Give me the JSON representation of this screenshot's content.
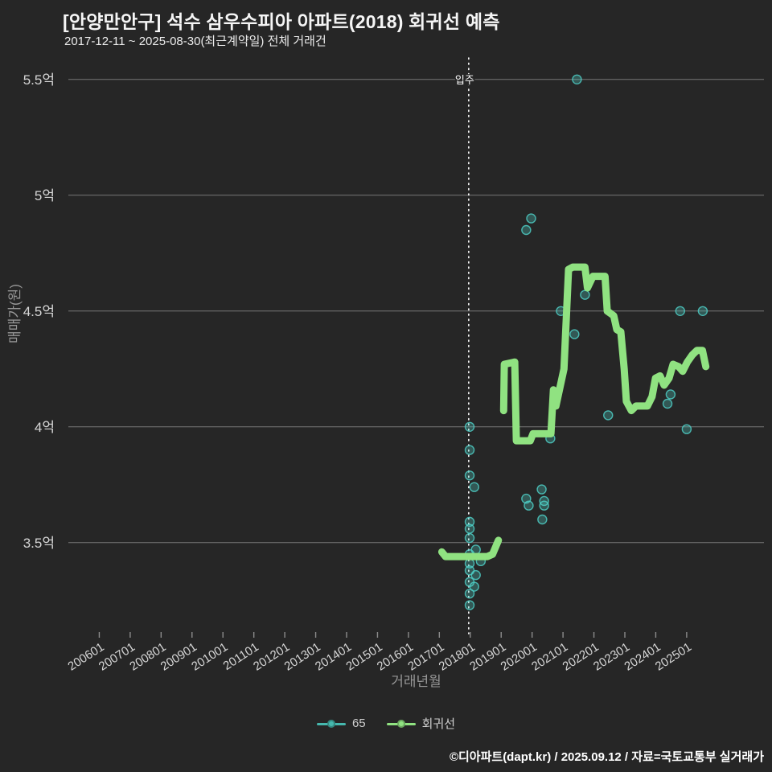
{
  "header": {
    "title": "[안양만안구] 석수 삼우수피아 아파트(2018) 회귀선 예측",
    "subtitle": "2017-12-11 ~ 2025-08-30(최근계약일) 전체 거래건"
  },
  "footer": {
    "credit": "©디아파트(dapt.kr) / 2025.09.12 / 자료=국토교통부 실거래가"
  },
  "legend": [
    {
      "label": "65",
      "color": "#46b8ae",
      "marker": "scatter-dot"
    },
    {
      "label": "회귀선",
      "color": "#90e281",
      "marker": "line-dot"
    }
  ],
  "colors": {
    "background": "#262626",
    "grid": "#8c8c8c",
    "tick_label": "#d6d6d6",
    "axis_title": "#969696",
    "annotation": "#ffffff",
    "scatter": "#4ecdc4",
    "regression": "#90e281"
  },
  "chart_data": {
    "type": "scatter",
    "title": "[안양만안구] 석수 삼우수피아 아파트(2018) 회귀선 예측",
    "subtitle": "2017-12-11 ~ 2025-08-30(최근계약일) 전체 거래건",
    "xlabel": "거래년월",
    "ylabel": "매매가(원)",
    "y_unit": "억",
    "xlim": [
      2005.0,
      2027.5
    ],
    "ylim": [
      3.1,
      5.6
    ],
    "grid": true,
    "legend_position": "bottom-center",
    "x_ticks": [
      {
        "value": 2006,
        "label": "200601"
      },
      {
        "value": 2007,
        "label": "200701"
      },
      {
        "value": 2008,
        "label": "200801"
      },
      {
        "value": 2009,
        "label": "200901"
      },
      {
        "value": 2010,
        "label": "201001"
      },
      {
        "value": 2011,
        "label": "201101"
      },
      {
        "value": 2012,
        "label": "201201"
      },
      {
        "value": 2013,
        "label": "201301"
      },
      {
        "value": 2014,
        "label": "201401"
      },
      {
        "value": 2015,
        "label": "201501"
      },
      {
        "value": 2016,
        "label": "201601"
      },
      {
        "value": 2017,
        "label": "201701"
      },
      {
        "value": 2018,
        "label": "201801"
      },
      {
        "value": 2019,
        "label": "201901"
      },
      {
        "value": 2020,
        "label": "202001"
      },
      {
        "value": 2021,
        "label": "202101"
      },
      {
        "value": 2022,
        "label": "202201"
      },
      {
        "value": 2023,
        "label": "202301"
      },
      {
        "value": 2024,
        "label": "202401"
      },
      {
        "value": 2025,
        "label": "202501"
      }
    ],
    "y_ticks": [
      {
        "value": 5.5,
        "label": "5.5억"
      },
      {
        "value": 5.0,
        "label": "5억"
      },
      {
        "value": 4.5,
        "label": "4.5억"
      },
      {
        "value": 4.0,
        "label": "4억"
      },
      {
        "value": 3.5,
        "label": "3.5억"
      }
    ],
    "annotation": {
      "label": "입주",
      "x": 2017.95,
      "style": "dotted-vertical-line",
      "color": "#ffffff"
    },
    "series": [
      {
        "name": "65",
        "type": "scatter",
        "color": "#4ecdc4",
        "points": [
          [
            2021.45,
            5.5
          ],
          [
            2019.97,
            4.9
          ],
          [
            2019.81,
            4.85
          ],
          [
            2024.79,
            4.5
          ],
          [
            2025.52,
            4.5
          ],
          [
            2020.93,
            4.5
          ],
          [
            2021.71,
            4.57
          ],
          [
            2021.37,
            4.4
          ],
          [
            2022.46,
            4.05
          ],
          [
            2024.48,
            4.14
          ],
          [
            2024.38,
            4.1
          ],
          [
            2025.0,
            3.99
          ],
          [
            2020.59,
            3.95
          ],
          [
            2017.98,
            4.0
          ],
          [
            2017.98,
            3.9
          ],
          [
            2017.98,
            3.79
          ],
          [
            2018.13,
            3.74
          ],
          [
            2020.31,
            3.73
          ],
          [
            2019.81,
            3.69
          ],
          [
            2020.39,
            3.68
          ],
          [
            2019.89,
            3.66
          ],
          [
            2020.39,
            3.66
          ],
          [
            2020.33,
            3.6
          ],
          [
            2017.98,
            3.59
          ],
          [
            2017.98,
            3.56
          ],
          [
            2017.98,
            3.52
          ],
          [
            2018.18,
            3.47
          ],
          [
            2017.98,
            3.45
          ],
          [
            2018.34,
            3.42
          ],
          [
            2017.98,
            3.41
          ],
          [
            2017.98,
            3.38
          ],
          [
            2018.18,
            3.36
          ],
          [
            2017.98,
            3.33
          ],
          [
            2018.13,
            3.31
          ],
          [
            2017.98,
            3.28
          ],
          [
            2017.98,
            3.23
          ]
        ]
      },
      {
        "name": "회귀선",
        "type": "line",
        "color": "#90e281",
        "width": 9,
        "segments": [
          [
            [
              2017.08,
              3.46
            ],
            [
              2017.2,
              3.44
            ],
            [
              2018.55,
              3.44
            ],
            [
              2018.72,
              3.45
            ],
            [
              2018.91,
              3.51
            ]
          ],
          [
            [
              2019.08,
              4.07
            ],
            [
              2019.1,
              4.27
            ],
            [
              2019.44,
              4.28
            ],
            [
              2019.49,
              3.94
            ],
            [
              2019.94,
              3.94
            ],
            [
              2020.03,
              3.97
            ],
            [
              2020.61,
              3.97
            ],
            [
              2020.69,
              4.16
            ],
            [
              2020.77,
              4.09
            ],
            [
              2021.03,
              4.25
            ],
            [
              2021.18,
              4.68
            ],
            [
              2021.32,
              4.69
            ],
            [
              2021.71,
              4.69
            ],
            [
              2021.79,
              4.6
            ],
            [
              2021.97,
              4.65
            ],
            [
              2022.36,
              4.65
            ],
            [
              2022.43,
              4.5
            ],
            [
              2022.64,
              4.48
            ],
            [
              2022.74,
              4.42
            ],
            [
              2022.87,
              4.41
            ],
            [
              2022.98,
              4.25
            ],
            [
              2023.05,
              4.11
            ],
            [
              2023.21,
              4.07
            ],
            [
              2023.36,
              4.09
            ],
            [
              2023.73,
              4.09
            ],
            [
              2023.88,
              4.13
            ],
            [
              2023.99,
              4.21
            ],
            [
              2024.14,
              4.22
            ],
            [
              2024.27,
              4.18
            ],
            [
              2024.43,
              4.21
            ],
            [
              2024.56,
              4.27
            ],
            [
              2024.74,
              4.26
            ],
            [
              2024.87,
              4.24
            ],
            [
              2025.02,
              4.28
            ],
            [
              2025.18,
              4.31
            ],
            [
              2025.33,
              4.33
            ],
            [
              2025.51,
              4.33
            ],
            [
              2025.62,
              4.26
            ]
          ]
        ]
      }
    ]
  }
}
